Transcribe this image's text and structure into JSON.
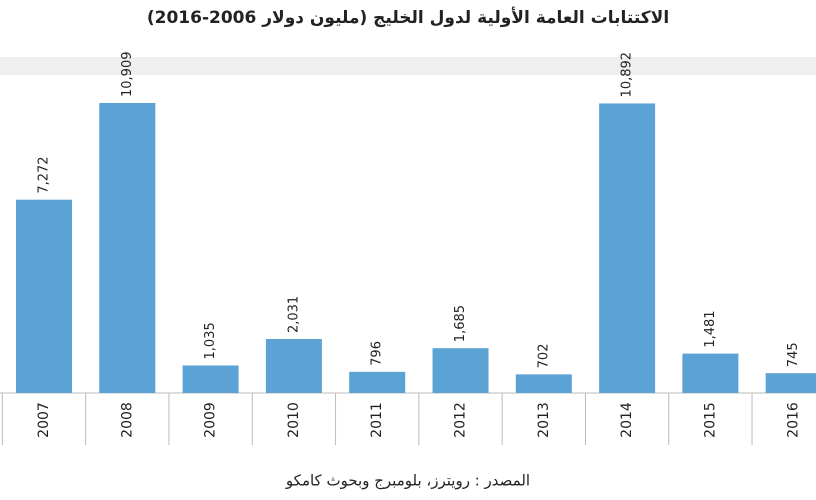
{
  "chart_data": {
    "type": "bar",
    "title": "الاكتتابات العامة الأولية لدول الخليج  (مليون دولار 2006-2016)",
    "source": "المصدر : رويترز، بلومبرج وبحوث كامكو",
    "categories": [
      "2007",
      "2008",
      "2009",
      "2010",
      "2011",
      "2012",
      "2013",
      "2014",
      "2015",
      "2016"
    ],
    "values": [
      7272,
      10909,
      1035,
      2031,
      796,
      1685,
      702,
      10892,
      1481,
      745
    ],
    "value_labels": [
      "7,272",
      "10,909",
      "1,035",
      "2,031",
      "796",
      "1,685",
      "702",
      "10,892",
      "1,481",
      "745"
    ],
    "color": "#5ba3d4"
  }
}
